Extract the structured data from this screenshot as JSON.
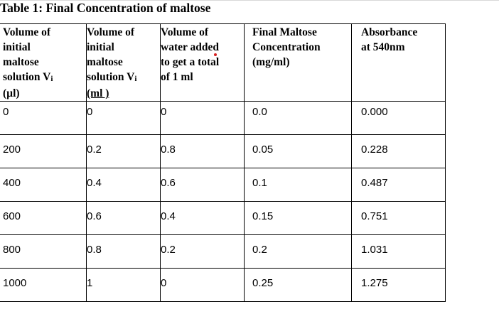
{
  "caption": "Table 1: Final Concentration of maltose",
  "headers": [
    {
      "lines": [
        "Volume of",
        "initial",
        "maltose"
      ],
      "last": "solution V",
      "sub": "i",
      "unit": "(µl)"
    },
    {
      "lines": [
        "Volume of",
        "initial",
        "maltose"
      ],
      "last": "solution V",
      "sub": "i",
      "unit": "(ml )"
    },
    {
      "lines": [
        "Volume of",
        "water added",
        "to get a total",
        "of 1 ml"
      ]
    },
    {
      "lines": [
        "Final Maltose",
        "Concentration",
        "(mg/ml)"
      ]
    },
    {
      "lines": [
        "Absorbance",
        "at 540nm"
      ]
    }
  ],
  "rows": [
    [
      "0",
      "0",
      "0",
      "0.0",
      "0.000"
    ],
    [
      "200",
      "0.2",
      "0.8",
      "0.05",
      "0.228"
    ],
    [
      "400",
      "0.4",
      "0.6",
      "0.1",
      "0.487"
    ],
    [
      "600",
      "0.6",
      "0.4",
      "0.15",
      "0.751"
    ],
    [
      "800",
      "0.8",
      "0.2",
      "0.2",
      "1.031"
    ],
    [
      "1000",
      "1",
      "0",
      "0.25",
      "1.275"
    ]
  ]
}
